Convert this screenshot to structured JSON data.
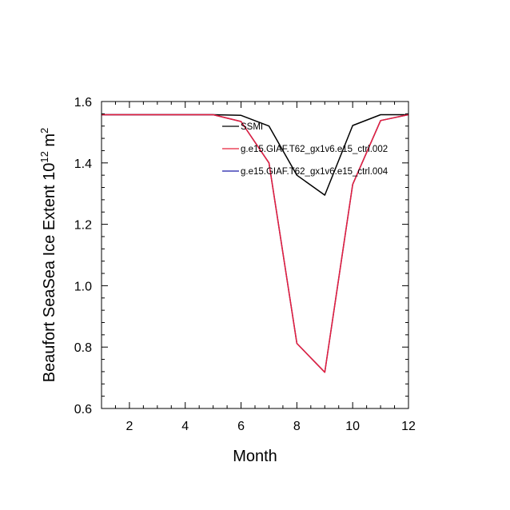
{
  "chart_data": {
    "type": "line",
    "title": "",
    "xlabel": "Month",
    "ylabel_main": "Beaufort SeaSea Ice Extent 10",
    "ylabel_exp1": "12",
    "ylabel_mid": " m",
    "ylabel_exp2": "2",
    "xlim": [
      1,
      12
    ],
    "ylim": [
      0.6,
      1.6
    ],
    "xticks": [
      2,
      4,
      6,
      8,
      10,
      12
    ],
    "xtick_labels": [
      "2",
      "4",
      "6",
      "8",
      "10",
      "12"
    ],
    "yticks": [
      0.6,
      0.8,
      1.0,
      1.2,
      1.4,
      1.6
    ],
    "ytick_labels": [
      "0.6",
      "0.8",
      "1.0",
      "1.2",
      "1.4",
      "1.6"
    ],
    "x": [
      1,
      2,
      3,
      4,
      5,
      6,
      7,
      8,
      9,
      10,
      11,
      12
    ],
    "series": [
      {
        "name": "SSMI",
        "color": "#000000",
        "values": [
          1.557,
          1.557,
          1.557,
          1.557,
          1.557,
          1.555,
          1.52,
          1.36,
          1.295,
          1.522,
          1.557,
          1.557
        ]
      },
      {
        "name": "g.e15.GIAF.T62_gx1v6.e15_ctrl.002",
        "color": "#e8203a",
        "values": [
          1.557,
          1.557,
          1.557,
          1.557,
          1.557,
          1.535,
          1.4,
          0.812,
          0.718,
          1.33,
          1.538,
          1.557
        ]
      },
      {
        "name": "g.e15.GIAF.T62_gx1v6.e15_ctrl.004",
        "color": "#1a1aa6",
        "values": [
          1.557,
          1.557,
          1.557,
          1.557,
          1.557,
          1.535,
          1.4,
          0.812,
          0.718,
          1.33,
          1.538,
          1.557
        ]
      }
    ],
    "legend_position": "top-right inside plot"
  }
}
